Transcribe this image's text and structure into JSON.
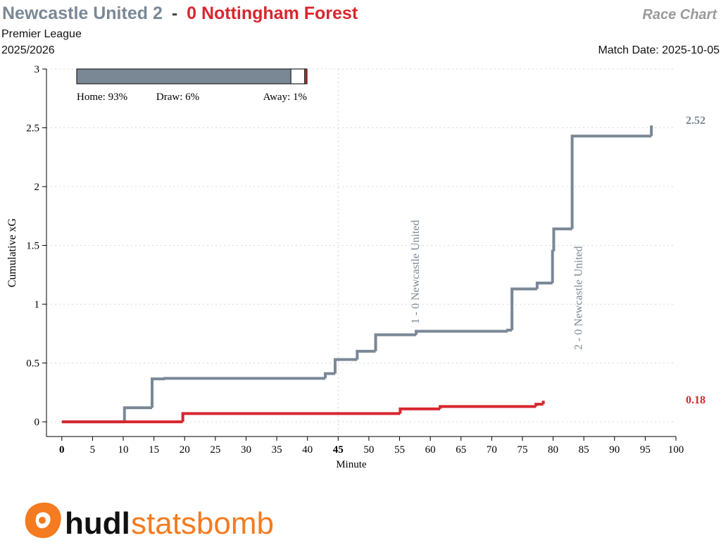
{
  "header": {
    "competition": "Premier League",
    "season": "2025/2026",
    "match_date": "Match Date: 2025-10-05",
    "chart_label": "Race Chart"
  },
  "logo": {
    "hudl": "hudl",
    "statsbomb": "statsbomb"
  },
  "chart_data": {
    "type": "step",
    "title": {
      "home": "Newcastle United 2",
      "separator": "-",
      "away": "0 Nottingham Forest"
    },
    "xlabel": "Minute",
    "ylabel": "Cumulative xG",
    "xlim": [
      -2.5,
      100
    ],
    "ylim": [
      -0.125,
      3
    ],
    "xticks": [
      0,
      5,
      10,
      15,
      20,
      25,
      30,
      35,
      40,
      45,
      50,
      55,
      60,
      65,
      70,
      75,
      80,
      85,
      90,
      95,
      100
    ],
    "yticks": [
      0,
      0.5,
      1,
      1.5,
      2,
      2.5,
      3
    ],
    "grid": true,
    "half_time": 45,
    "series": [
      {
        "name": "Newcastle United",
        "color": "#7a8896",
        "x": [
          0,
          10.2,
          14.7,
          16.8,
          42.9,
          44.5,
          48.1,
          51.1,
          57.7,
          72.6,
          73.3,
          77.4,
          79.9,
          80.1,
          83.1,
          96
        ],
        "values": [
          0,
          0.12,
          0.365,
          0.37,
          0.41,
          0.53,
          0.6,
          0.74,
          0.77,
          0.78,
          1.13,
          1.18,
          1.45,
          1.64,
          2.43,
          2.52
        ]
      },
      {
        "name": "Nottingham Forest",
        "color": "#d7262e",
        "x": [
          0,
          19.7,
          55.1,
          61.6,
          77.2,
          78.4
        ],
        "values": [
          0,
          0.07,
          0.11,
          0.13,
          0.15,
          0.18
        ]
      }
    ],
    "annotations": [
      {
        "text": "1 - 0 Newcastle United",
        "x": 57.7
      },
      {
        "text": "2 - 0 Newcastle United",
        "x": 83.1
      }
    ],
    "win_probability": [
      {
        "label": "Home: 93%",
        "value": 93,
        "color": "#7a8896"
      },
      {
        "label": "Draw: 6%",
        "value": 6,
        "color": "#ffffff"
      },
      {
        "label": "Away: 1%",
        "value": 1,
        "color": "#d7262e"
      }
    ]
  }
}
